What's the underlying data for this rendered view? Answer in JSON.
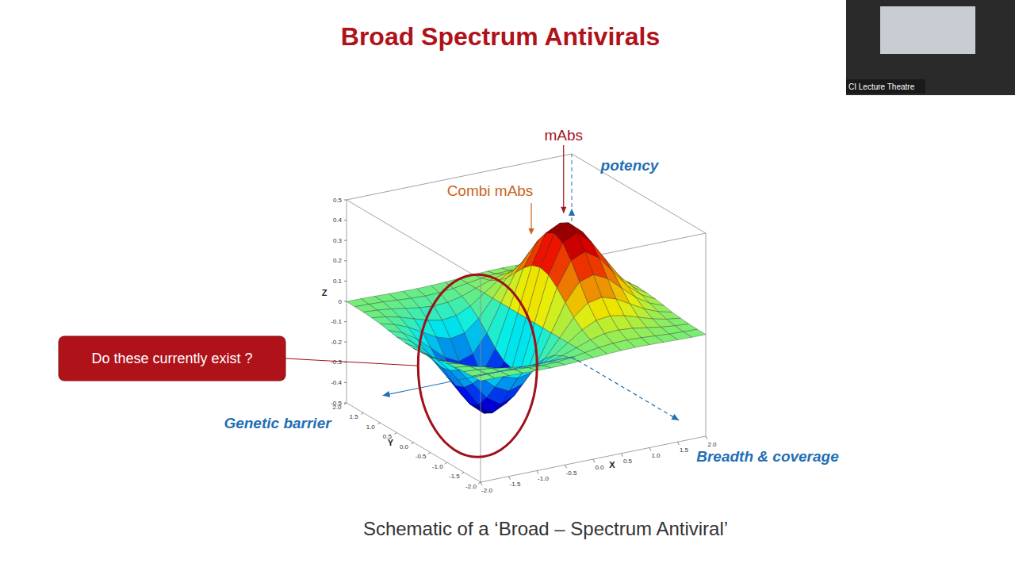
{
  "chart_data": {
    "type": "surface",
    "title": "Broad Spectrum Antivirals",
    "subtitle": "Schematic of a ‘Broad – Spectrum Antiviral’",
    "x_label": "X",
    "y_label": "Y",
    "z_label": "Z",
    "x": [
      -2,
      -1.75,
      -1.5,
      -1.25,
      -1,
      -0.75,
      -0.5,
      -0.25,
      0,
      0.25,
      0.5,
      0.75,
      1,
      1.25,
      1.5,
      1.75,
      2
    ],
    "y": [
      -2,
      -1.75,
      -1.5,
      -1.25,
      -1,
      -0.75,
      -0.5,
      -0.25,
      0,
      0.25,
      0.5,
      0.75,
      1,
      1.25,
      1.5,
      1.75,
      2
    ],
    "z": [
      [
        -0.001,
        -0.001,
        -0.003,
        -0.005,
        -0.007,
        -0.008,
        -0.007,
        -0.004,
        0,
        0.004,
        0.007,
        0.008,
        0.007,
        0.005,
        0.003,
        0.001,
        0.001
      ],
      [
        -0.002,
        -0.004,
        -0.007,
        -0.012,
        -0.017,
        -0.02,
        -0.018,
        -0.011,
        0,
        0.011,
        0.018,
        0.02,
        0.017,
        0.012,
        0.007,
        0.004,
        0.002
      ],
      [
        -0.004,
        -0.009,
        -0.017,
        -0.028,
        -0.039,
        -0.045,
        -0.041,
        -0.025,
        0,
        0.025,
        0.041,
        0.045,
        0.039,
        0.028,
        0.017,
        0.009,
        0.004
      ],
      [
        -0.008,
        -0.017,
        -0.033,
        -0.055,
        -0.077,
        -0.09,
        -0.082,
        -0.049,
        0,
        0.049,
        0.082,
        0.09,
        0.077,
        0.055,
        0.033,
        0.017,
        0.008
      ],
      [
        -0.013,
        -0.03,
        -0.058,
        -0.096,
        -0.135,
        -0.157,
        -0.143,
        -0.086,
        0,
        0.086,
        0.143,
        0.157,
        0.135,
        0.096,
        0.058,
        0.03,
        0.013
      ],
      [
        -0.021,
        -0.047,
        -0.09,
        -0.149,
        -0.21,
        -0.244,
        -0.222,
        -0.134,
        0,
        0.134,
        0.222,
        0.244,
        0.21,
        0.149,
        0.09,
        0.047,
        0.021
      ],
      [
        -0.029,
        -0.064,
        -0.123,
        -0.204,
        -0.287,
        -0.333,
        -0.303,
        -0.183,
        0,
        0.183,
        0.303,
        0.333,
        0.287,
        0.204,
        0.123,
        0.064,
        0.029
      ],
      [
        -0.034,
        -0.077,
        -0.149,
        -0.246,
        -0.346,
        -0.401,
        -0.366,
        -0.221,
        0,
        0.221,
        0.366,
        0.401,
        0.346,
        0.246,
        0.149,
        0.077,
        0.034
      ],
      [
        -0.037,
        -0.082,
        -0.158,
        -0.262,
        -0.368,
        -0.427,
        -0.389,
        -0.235,
        0,
        0.235,
        0.389,
        0.427,
        0.368,
        0.262,
        0.158,
        0.082,
        0.037
      ],
      [
        -0.034,
        -0.077,
        -0.149,
        -0.246,
        -0.346,
        -0.401,
        -0.366,
        -0.221,
        0,
        0.221,
        0.366,
        0.401,
        0.346,
        0.246,
        0.149,
        0.077,
        0.034
      ],
      [
        -0.029,
        -0.064,
        -0.123,
        -0.204,
        -0.287,
        -0.333,
        -0.303,
        -0.183,
        0,
        0.183,
        0.303,
        0.333,
        0.287,
        0.204,
        0.123,
        0.064,
        0.029
      ],
      [
        -0.021,
        -0.047,
        -0.09,
        -0.149,
        -0.21,
        -0.244,
        -0.222,
        -0.134,
        0,
        0.134,
        0.222,
        0.244,
        0.21,
        0.149,
        0.09,
        0.047,
        0.021
      ],
      [
        -0.013,
        -0.03,
        -0.058,
        -0.096,
        -0.135,
        -0.157,
        -0.143,
        -0.086,
        0,
        0.086,
        0.143,
        0.157,
        0.135,
        0.096,
        0.058,
        0.03,
        0.013
      ],
      [
        -0.008,
        -0.017,
        -0.033,
        -0.055,
        -0.077,
        -0.09,
        -0.082,
        -0.049,
        0,
        0.049,
        0.082,
        0.09,
        0.077,
        0.055,
        0.033,
        0.017,
        0.008
      ],
      [
        -0.004,
        -0.009,
        -0.017,
        -0.028,
        -0.039,
        -0.045,
        -0.041,
        -0.025,
        0,
        0.025,
        0.041,
        0.045,
        0.039,
        0.028,
        0.017,
        0.009,
        0.004
      ],
      [
        -0.002,
        -0.004,
        -0.007,
        -0.012,
        -0.017,
        -0.02,
        -0.018,
        -0.011,
        0,
        0.011,
        0.018,
        0.02,
        0.017,
        0.012,
        0.007,
        0.004,
        0.002
      ],
      [
        -0.001,
        -0.001,
        -0.003,
        -0.005,
        -0.007,
        -0.008,
        -0.007,
        -0.004,
        0,
        0.004,
        0.007,
        0.008,
        0.007,
        0.005,
        0.003,
        0.001,
        0.001
      ]
    ],
    "xlim": [
      -2,
      2
    ],
    "ylim": [
      -2,
      2
    ],
    "zlim": [
      -0.5,
      0.5
    ],
    "xticks": [
      {
        "value": -2,
        "label": "-2.0"
      },
      {
        "value": -1.5,
        "label": "-1.5"
      },
      {
        "value": -1,
        "label": "-1.0"
      },
      {
        "value": -0.5,
        "label": "-0.5"
      },
      {
        "value": 0,
        "label": "0.0"
      },
      {
        "value": 0.5,
        "label": "0.5"
      },
      {
        "value": 1,
        "label": "1.0"
      },
      {
        "value": 1.5,
        "label": "1.5"
      },
      {
        "value": 2,
        "label": "2.0"
      }
    ],
    "yticks": [
      {
        "value": -2,
        "label": "-2.0"
      },
      {
        "value": -1.5,
        "label": "-1.5"
      },
      {
        "value": -1,
        "label": "-1.0"
      },
      {
        "value": -0.5,
        "label": "-0.5"
      },
      {
        "value": 0,
        "label": "0.0"
      },
      {
        "value": 0.5,
        "label": "0.5"
      },
      {
        "value": 1,
        "label": "1.0"
      },
      {
        "value": 1.5,
        "label": "1.5"
      },
      {
        "value": 2,
        "label": "2.0"
      }
    ],
    "zticks": [
      -0.5,
      -0.4,
      -0.3,
      -0.2,
      -0.1,
      0,
      0.1,
      0.2,
      0.3,
      0.4,
      0.5
    ],
    "annotations": {
      "peak": "mAbs",
      "slope": "Combi mAbs",
      "callout": "Do these currently exist ?"
    },
    "axis_arrows": {
      "z": "potency",
      "x": "Genetic barrier",
      "y": "Breadth & coverage"
    },
    "video_caption": "CI Lecture Theatre"
  }
}
